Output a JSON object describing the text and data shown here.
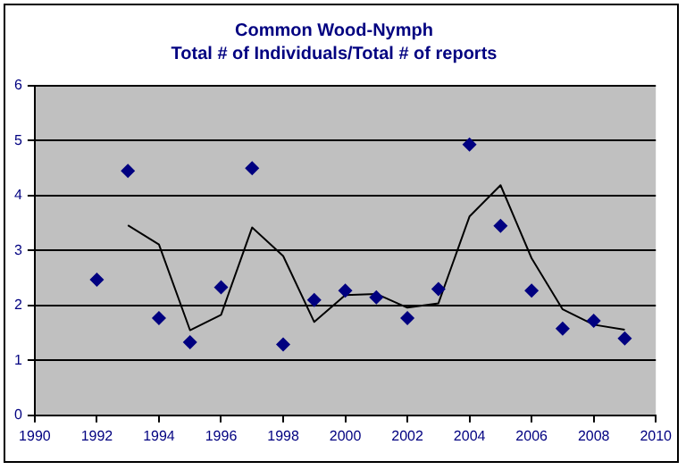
{
  "chart_data": {
    "type": "scatter",
    "title": "Common Wood-Nymph",
    "subtitle": "Total # of Individuals/Total # of reports",
    "series": [
      {
        "type": "scatter",
        "color": "#000080",
        "marker": "diamond",
        "x": [
          1992,
          1993,
          1994,
          1995,
          1996,
          1997,
          1998,
          1999,
          2000,
          2001,
          2002,
          2003,
          2004,
          2005,
          2006,
          2007,
          2008,
          2009
        ],
        "values": [
          2.47,
          4.45,
          1.77,
          1.33,
          2.33,
          4.5,
          1.29,
          2.1,
          2.27,
          2.15,
          1.77,
          2.3,
          4.93,
          3.45,
          2.27,
          1.58,
          1.72,
          1.4
        ]
      },
      {
        "type": "line",
        "color": "#000000",
        "marker": "none",
        "x": [
          1993,
          1994,
          1995,
          1996,
          1997,
          1998,
          1999,
          2000,
          2001,
          2002,
          2003,
          2004,
          2005,
          2006,
          2007,
          2008,
          2009
        ],
        "values": [
          3.46,
          3.11,
          1.55,
          1.83,
          3.42,
          2.9,
          1.7,
          2.19,
          2.21,
          1.96,
          2.04,
          3.62,
          4.19,
          2.86,
          1.93,
          1.65,
          1.56
        ]
      }
    ],
    "xlim": [
      1990,
      2010
    ],
    "xticks": [
      1990,
      1992,
      1994,
      1996,
      1998,
      2000,
      2002,
      2004,
      2006,
      2008,
      2010
    ],
    "ylim": [
      0,
      6
    ],
    "yticks": [
      0,
      1,
      2,
      3,
      4,
      5,
      6
    ],
    "grid": "y",
    "legend": false
  }
}
